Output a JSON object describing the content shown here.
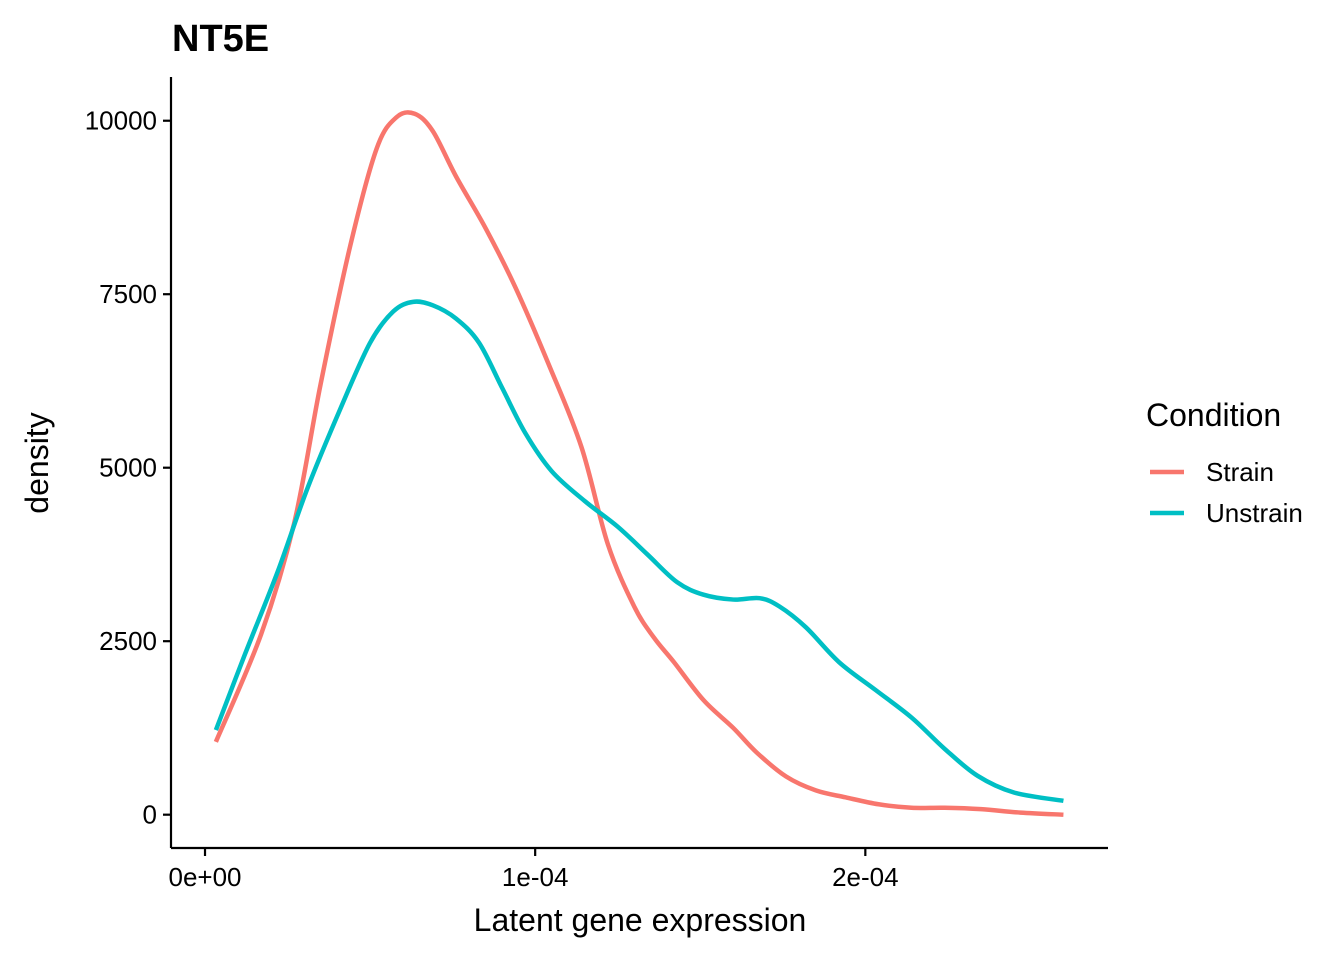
{
  "chart_data": {
    "type": "line",
    "title": "NT5E",
    "xlabel": "Latent gene expression",
    "ylabel": "density",
    "xlim": [
      -1.03e-05,
      0.0002735
    ],
    "ylim": [
      -480,
      10630
    ],
    "x_ticks": [
      {
        "value": 0,
        "label": "0e+00"
      },
      {
        "value": 0.0001,
        "label": "1e-04"
      },
      {
        "value": 0.0002,
        "label": "2e-04"
      }
    ],
    "y_ticks": [
      {
        "value": 0,
        "label": "0"
      },
      {
        "value": 2500,
        "label": "2500"
      },
      {
        "value": 5000,
        "label": "5000"
      },
      {
        "value": 7500,
        "label": "7500"
      },
      {
        "value": 10000,
        "label": "10000"
      }
    ],
    "grid": false,
    "legend": {
      "title": "Condition",
      "position": "right"
    },
    "series": [
      {
        "name": "Strain",
        "color": "#F8766D",
        "x": [
          3.3e-06,
          1.7e-05,
          2.7e-05,
          3.5e-05,
          4.4e-05,
          5.2e-05,
          5.8e-05,
          6.35e-05,
          6.9e-05,
          7.6e-05,
          8.5e-05,
          9.4e-05,
          0.000104,
          0.000114,
          0.000122,
          0.00013,
          0.000136,
          0.000142,
          0.000151,
          0.00016,
          0.000167,
          0.000176,
          0.000185,
          0.000194,
          0.000204,
          0.000214,
          0.000224,
          0.000235,
          0.000247,
          0.00026
        ],
        "values": [
          1050,
          2600,
          4200,
          6200,
          8200,
          9600,
          10050,
          10100,
          9850,
          9200,
          8450,
          7600,
          6500,
          5300,
          3900,
          3000,
          2550,
          2200,
          1650,
          1250,
          900,
          550,
          350,
          250,
          150,
          100,
          100,
          80,
          30,
          0
        ]
      },
      {
        "name": "Unstrain",
        "color": "#00BFC4",
        "x": [
          3.3e-06,
          1.2e-05,
          2.2e-05,
          3.1e-05,
          4.1e-05,
          5e-05,
          5.7e-05,
          6.3e-05,
          6.9e-05,
          7.6e-05,
          8.3e-05,
          9e-05,
          9.7e-05,
          0.000105,
          0.000115,
          0.000125,
          0.000134,
          0.000143,
          0.000151,
          0.00016,
          0.000168,
          0.000174,
          0.000182,
          0.000192,
          0.000203,
          0.000214,
          0.000224,
          0.000234,
          0.000245,
          0.00026
        ],
        "values": [
          1220,
          2300,
          3500,
          4700,
          5850,
          6800,
          7250,
          7390,
          7340,
          7150,
          6800,
          6150,
          5500,
          4950,
          4520,
          4150,
          3750,
          3350,
          3170,
          3100,
          3120,
          3000,
          2700,
          2200,
          1800,
          1400,
          950,
          560,
          320,
          200
        ]
      }
    ]
  }
}
